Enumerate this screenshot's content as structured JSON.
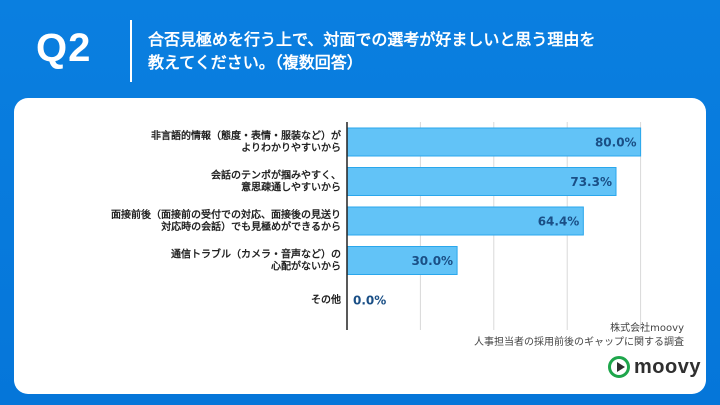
{
  "header": {
    "question": "Q2",
    "title_lines": [
      "合否見極めを行う上で、対面での選考が好ましいと思う理由を",
      "教えてください。（複数回答）"
    ]
  },
  "chart_data": {
    "type": "bar",
    "orientation": "horizontal",
    "categories": [
      [
        "非言語的情報（態度・表情・服装など）が",
        "よりわかりやすいから"
      ],
      [
        "会話のテンポが掴みやすく、",
        "意思疎通しやすいから"
      ],
      [
        "面接前後（面接前の受付での対応、面接後の見送り",
        "対応時の会話）でも見極めができるから"
      ],
      [
        "通信トラブル（カメラ・音声など）の",
        "心配がないから"
      ],
      [
        "その他"
      ]
    ],
    "values": [
      80.0,
      73.3,
      64.4,
      30.0,
      0.0
    ],
    "value_labels": [
      "80.0%",
      "73.3%",
      "64.4%",
      "30.0%",
      "0.0%"
    ],
    "xlim": [
      0,
      100
    ],
    "grid": true,
    "bar_color": "#62c3f7",
    "bar_border_color": "#2aa7ec",
    "label_color": "#1a4f86"
  },
  "footer": {
    "source_lines": [
      "株式会社moovy",
      "人事担当者の採用前後のギャップに関する調査"
    ],
    "logo_text": "moovy"
  },
  "colors": {
    "background": "#0576d9",
    "logo_green": "#1ea64b"
  }
}
